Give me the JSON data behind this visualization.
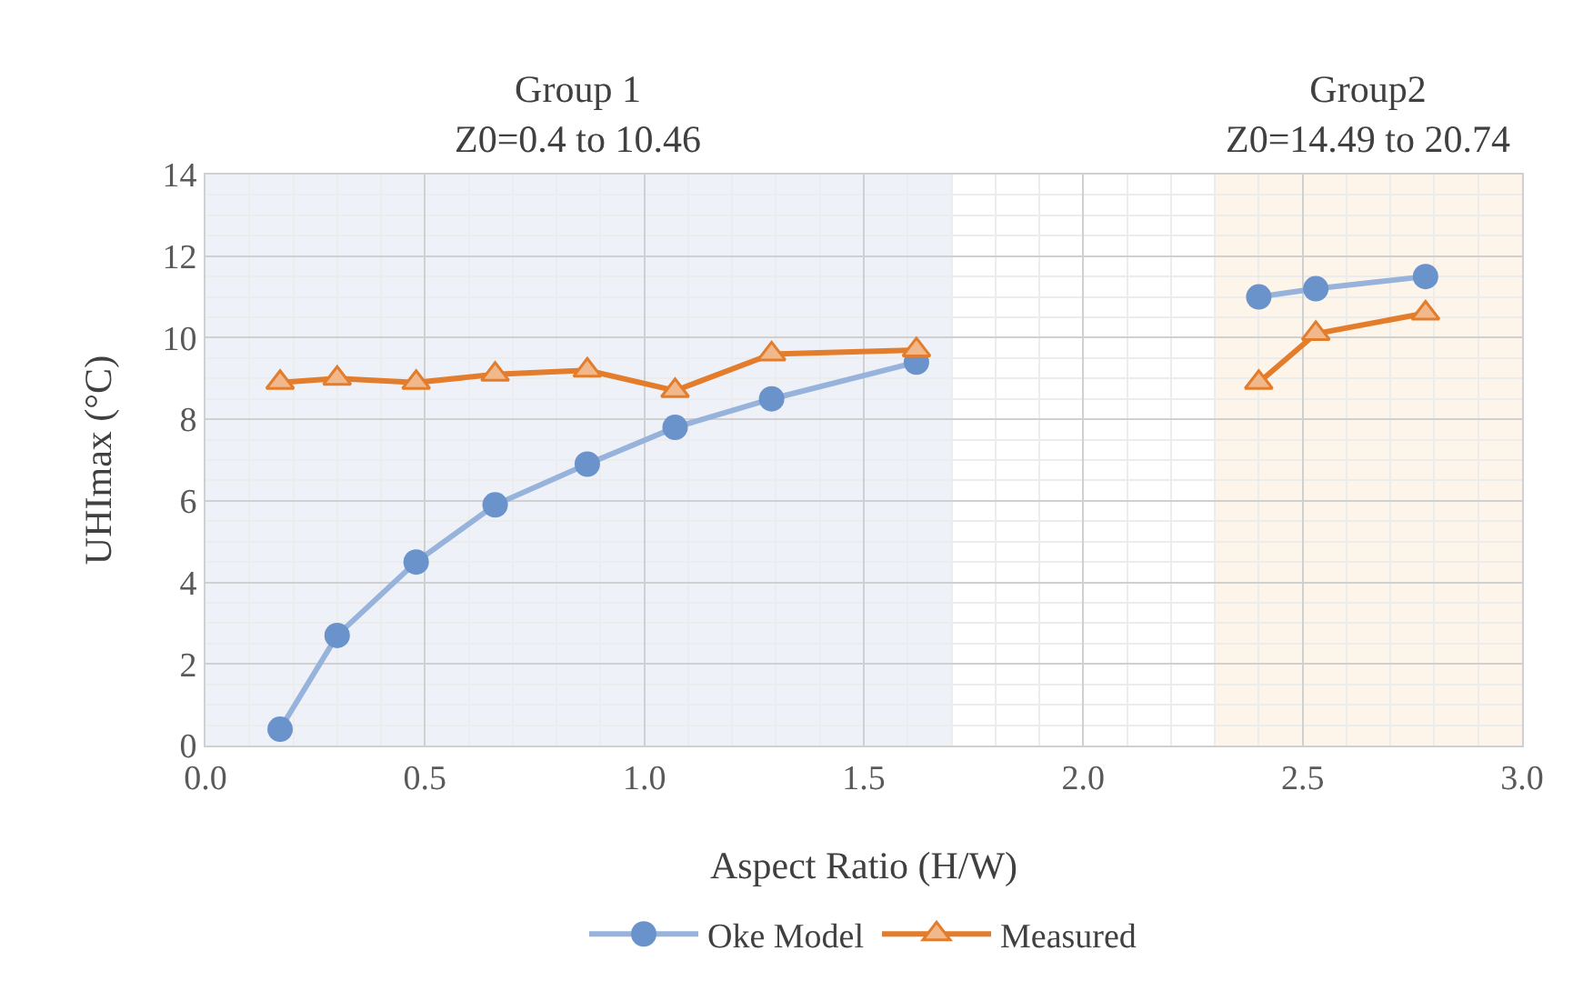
{
  "chart_data": {
    "type": "line",
    "xlabel": "Aspect Ratio (H/W)",
    "ylabel": "UHImax (°C)",
    "xlim": [
      0,
      3
    ],
    "xticks": [
      {
        "value": 0,
        "label": "0.0"
      },
      0.5,
      {
        "value": 1,
        "label": "1.0"
      },
      1.5,
      {
        "value": 2,
        "label": "2.0"
      },
      2.5,
      {
        "value": 3,
        "label": "3.0"
      }
    ],
    "ylim": [
      0,
      14
    ],
    "yticks": [
      0,
      2,
      4,
      6,
      8,
      10,
      12,
      14
    ],
    "grid": true,
    "legend": "bottom",
    "series": [
      {
        "name": "Oke Model",
        "color": "#6a93cc",
        "marker": "circle",
        "x": [
          0.17,
          0.3,
          0.48,
          0.66,
          0.87,
          1.07,
          1.29,
          1.62,
          null,
          2.4,
          2.53,
          2.78
        ],
        "values": [
          0.4,
          2.7,
          4.5,
          5.9,
          6.9,
          7.8,
          8.5,
          9.4,
          null,
          11.0,
          11.2,
          11.5
        ]
      },
      {
        "name": "Measured",
        "color": "#e37d2c",
        "marker": "triangle",
        "x": [
          0.17,
          0.3,
          0.48,
          0.66,
          0.87,
          1.07,
          1.29,
          1.62,
          null,
          2.4,
          2.53,
          2.78
        ],
        "values": [
          8.9,
          9.0,
          8.9,
          9.1,
          9.2,
          8.7,
          9.6,
          9.7,
          null,
          8.9,
          10.1,
          10.6
        ]
      }
    ],
    "bands": [
      {
        "axis": "x",
        "from": 0,
        "to": 1.7,
        "label": "Group 1\nZ0=0.4 to 10.46",
        "color": "#eef2f8"
      },
      {
        "axis": "x",
        "from": 2.3,
        "to": 3.0,
        "label": "Group2\nZ0=14.49 to 20.74",
        "color": "#fdf4ea"
      }
    ]
  }
}
